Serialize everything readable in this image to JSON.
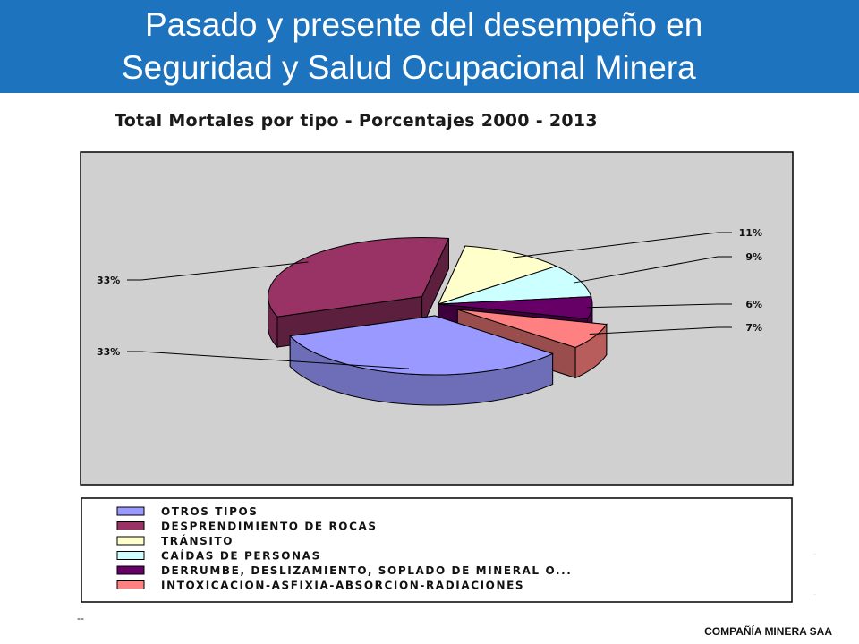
{
  "header": {
    "title_line1": "Pasado y presente del desempeño en",
    "title_line2": "Seguridad y Salud Ocupacional Minera",
    "background": "#1E73BE"
  },
  "chart_data": {
    "type": "pie",
    "title": "Total Mortales por tipo - Porcentajes 2000 - 2013",
    "legend_position": "bottom",
    "three_d": true,
    "slices": [
      {
        "name": "OTROS TIPOS",
        "value": 33,
        "label": "33%",
        "color": "#9999FF",
        "exploded": true
      },
      {
        "name": "DESPRENDIMIENTO DE ROCAS",
        "value": 33,
        "label": "33%",
        "color": "#993366",
        "exploded": true
      },
      {
        "name": "TRÁNSITO",
        "value": 11,
        "label": "11%",
        "color": "#FFFFCC",
        "exploded": false
      },
      {
        "name": "CAÍDAS DE PERSONAS",
        "value": 9,
        "label": "9%",
        "color": "#CCFFFF",
        "exploded": false
      },
      {
        "name": "DERRUMBE, DESLIZAMIENTO, SOPLADO DE MINERAL O...",
        "value": 6,
        "label": "6%",
        "color": "#660066",
        "exploded": false
      },
      {
        "name": "INTOXICACION-ASFIXIA-ABSORCION-RADIACIONES",
        "value": 7,
        "label": "7%",
        "color": "#FF8080",
        "exploded": true
      }
    ]
  },
  "footer": {
    "left_mark": "--",
    "company": "COMPAÑÍA MINERA SAA"
  }
}
